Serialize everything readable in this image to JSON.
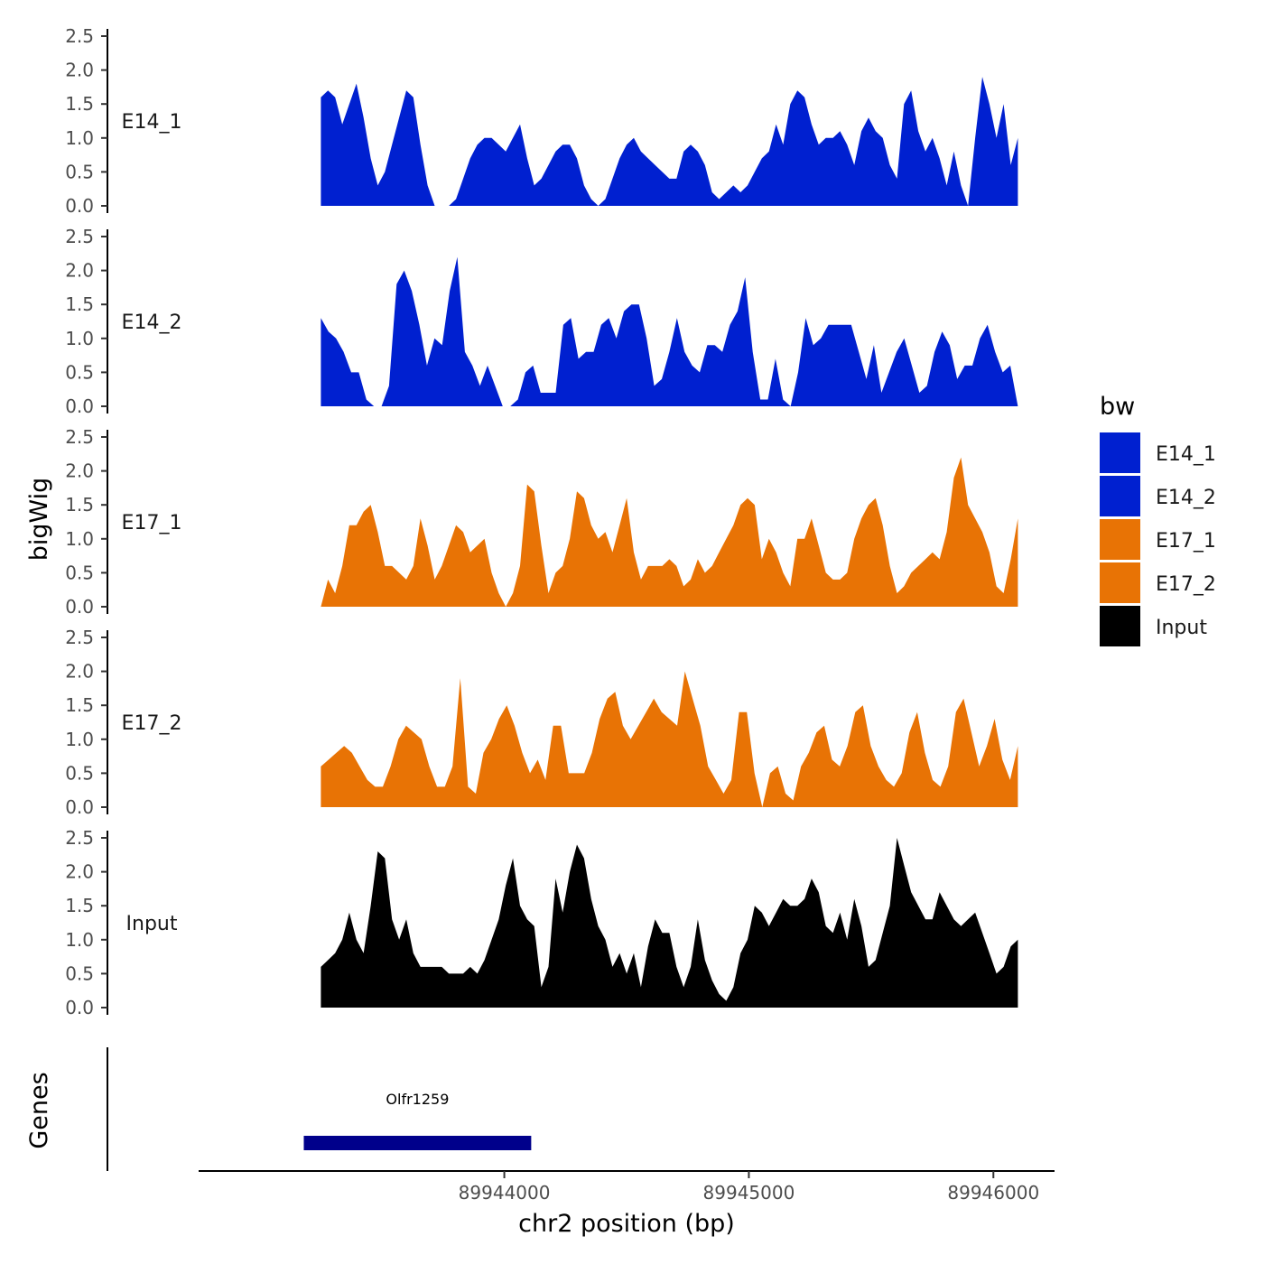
{
  "chart_data": {
    "type": "area",
    "title": "",
    "xlabel": "chr2 position (bp)",
    "ylabel_tracks": "bigWig",
    "ylabel_genes": "Genes",
    "xlim": [
      89942750,
      89946250
    ],
    "x_ticks": [
      89944000,
      89945000,
      89946000
    ],
    "x_tick_labels": [
      "89944000",
      "89945000",
      "89946000"
    ],
    "ylim": [
      0,
      2.5
    ],
    "y_ticks": [
      "0.0",
      "0.5",
      "1.0",
      "1.5",
      "2.0",
      "2.5"
    ],
    "legend": {
      "title": "bw",
      "placement": "right",
      "items": [
        {
          "label": "E14_1",
          "color": "#0020D0"
        },
        {
          "label": "E14_2",
          "color": "#0020D0"
        },
        {
          "label": "E17_1",
          "color": "#E87305"
        },
        {
          "label": "E17_2",
          "color": "#E87305"
        },
        {
          "label": "Input",
          "color": "#000000"
        }
      ]
    },
    "x_start": 89943250,
    "x_end": 89946100,
    "series": [
      {
        "name": "E14_1",
        "color": "#0020D0",
        "values": [
          1.6,
          1.7,
          1.6,
          1.2,
          1.5,
          1.8,
          1.3,
          0.7,
          0.3,
          0.5,
          0.9,
          1.3,
          1.7,
          1.6,
          0.9,
          0.3,
          0.0,
          0.0,
          0.0,
          0.1,
          0.4,
          0.7,
          0.9,
          1.0,
          1.0,
          0.9,
          0.8,
          1.0,
          1.2,
          0.7,
          0.3,
          0.4,
          0.6,
          0.8,
          0.9,
          0.9,
          0.7,
          0.3,
          0.1,
          0.0,
          0.1,
          0.4,
          0.7,
          0.9,
          1.0,
          0.8,
          0.7,
          0.6,
          0.5,
          0.4,
          0.4,
          0.8,
          0.9,
          0.8,
          0.6,
          0.2,
          0.1,
          0.2,
          0.3,
          0.2,
          0.3,
          0.5,
          0.7,
          0.8,
          1.2,
          0.9,
          1.5,
          1.7,
          1.6,
          1.2,
          0.9,
          1.0,
          1.0,
          1.1,
          0.9,
          0.6,
          1.1,
          1.3,
          1.1,
          1.0,
          0.6,
          0.4,
          1.5,
          1.7,
          1.1,
          0.8,
          1.0,
          0.7,
          0.3,
          0.8,
          0.3,
          0.0,
          1.0,
          1.9,
          1.5,
          1.0,
          1.5,
          0.6,
          1.0
        ]
      },
      {
        "name": "E14_2",
        "color": "#0020D0",
        "values": [
          1.3,
          1.1,
          1.0,
          0.8,
          0.5,
          0.5,
          0.1,
          0.0,
          0.0,
          0.3,
          1.8,
          2.0,
          1.7,
          1.2,
          0.6,
          1.0,
          0.9,
          1.7,
          2.2,
          0.8,
          0.6,
          0.3,
          0.6,
          0.3,
          0.0,
          0.0,
          0.1,
          0.5,
          0.6,
          0.2,
          0.2,
          0.2,
          1.2,
          1.3,
          0.7,
          0.8,
          0.8,
          1.2,
          1.3,
          1.0,
          1.4,
          1.5,
          1.5,
          1.0,
          0.3,
          0.4,
          0.8,
          1.3,
          0.8,
          0.6,
          0.5,
          0.9,
          0.9,
          0.8,
          1.2,
          1.4,
          1.9,
          0.8,
          0.1,
          0.1,
          0.7,
          0.1,
          0.0,
          0.5,
          1.3,
          0.9,
          1.0,
          1.2,
          1.2,
          1.2,
          1.2,
          0.8,
          0.4,
          0.9,
          0.2,
          0.5,
          0.8,
          1.0,
          0.6,
          0.2,
          0.3,
          0.8,
          1.1,
          0.9,
          0.4,
          0.6,
          0.6,
          1.0,
          1.2,
          0.8,
          0.5,
          0.6,
          0.0
        ]
      },
      {
        "name": "E17_1",
        "color": "#E87305",
        "values": [
          0.0,
          0.4,
          0.2,
          0.6,
          1.2,
          1.2,
          1.4,
          1.5,
          1.1,
          0.6,
          0.6,
          0.5,
          0.4,
          0.6,
          1.3,
          0.9,
          0.4,
          0.6,
          0.9,
          1.2,
          1.1,
          0.8,
          0.9,
          1.0,
          0.5,
          0.2,
          0.0,
          0.2,
          0.6,
          1.8,
          1.7,
          0.9,
          0.2,
          0.5,
          0.6,
          1.0,
          1.7,
          1.6,
          1.2,
          1.0,
          1.1,
          0.8,
          1.2,
          1.6,
          0.8,
          0.4,
          0.6,
          0.6,
          0.6,
          0.7,
          0.6,
          0.3,
          0.4,
          0.7,
          0.5,
          0.6,
          0.8,
          1.0,
          1.2,
          1.5,
          1.6,
          1.5,
          0.7,
          1.0,
          0.8,
          0.5,
          0.3,
          1.0,
          1.0,
          1.3,
          0.9,
          0.5,
          0.4,
          0.4,
          0.5,
          1.0,
          1.3,
          1.5,
          1.6,
          1.2,
          0.6,
          0.2,
          0.3,
          0.5,
          0.6,
          0.7,
          0.8,
          0.7,
          1.1,
          1.9,
          2.2,
          1.5,
          1.3,
          1.1,
          0.8,
          0.3,
          0.2,
          0.7,
          1.3
        ]
      },
      {
        "name": "E17_2",
        "color": "#E87305",
        "values": [
          0.6,
          0.7,
          0.8,
          0.9,
          0.8,
          0.6,
          0.4,
          0.3,
          0.3,
          0.6,
          1.0,
          1.2,
          1.1,
          1.0,
          0.6,
          0.3,
          0.3,
          0.6,
          1.9,
          0.3,
          0.2,
          0.8,
          1.0,
          1.3,
          1.5,
          1.2,
          0.8,
          0.5,
          0.7,
          0.4,
          1.2,
          1.2,
          0.5,
          0.5,
          0.5,
          0.8,
          1.3,
          1.6,
          1.7,
          1.2,
          1.0,
          1.2,
          1.4,
          1.6,
          1.4,
          1.3,
          1.2,
          2.0,
          1.6,
          1.2,
          0.6,
          0.4,
          0.2,
          0.4,
          1.4,
          1.4,
          0.5,
          0.0,
          0.5,
          0.6,
          0.2,
          0.1,
          0.6,
          0.8,
          1.1,
          1.2,
          0.7,
          0.6,
          0.9,
          1.4,
          1.5,
          0.9,
          0.6,
          0.4,
          0.3,
          0.5,
          1.1,
          1.4,
          0.8,
          0.4,
          0.3,
          0.6,
          1.4,
          1.6,
          1.1,
          0.6,
          0.9,
          1.3,
          0.7,
          0.4,
          0.9
        ]
      },
      {
        "name": "Input",
        "color": "#000000",
        "values": [
          0.6,
          0.7,
          0.8,
          1.0,
          1.4,
          1.0,
          0.8,
          1.5,
          2.3,
          2.2,
          1.3,
          1.0,
          1.3,
          0.8,
          0.6,
          0.6,
          0.6,
          0.6,
          0.5,
          0.5,
          0.5,
          0.6,
          0.5,
          0.7,
          1.0,
          1.3,
          1.8,
          2.2,
          1.5,
          1.3,
          1.2,
          0.3,
          0.6,
          1.9,
          1.4,
          2.0,
          2.4,
          2.2,
          1.6,
          1.2,
          1.0,
          0.6,
          0.8,
          0.5,
          0.8,
          0.3,
          0.9,
          1.3,
          1.1,
          1.1,
          0.6,
          0.3,
          0.6,
          1.3,
          0.7,
          0.4,
          0.2,
          0.1,
          0.3,
          0.8,
          1.0,
          1.5,
          1.4,
          1.2,
          1.4,
          1.6,
          1.5,
          1.5,
          1.6,
          1.9,
          1.7,
          1.2,
          1.1,
          1.4,
          1.0,
          1.6,
          1.2,
          0.6,
          0.7,
          1.1,
          1.5,
          2.5,
          2.1,
          1.7,
          1.5,
          1.3,
          1.3,
          1.7,
          1.5,
          1.3,
          1.2,
          1.3,
          1.4,
          1.1,
          0.8,
          0.5,
          0.6,
          0.9,
          1.0
        ]
      }
    ],
    "genes": [
      {
        "name": "Olfr1259",
        "start": 89943180,
        "end": 89944110,
        "color": "#00008B"
      }
    ]
  }
}
